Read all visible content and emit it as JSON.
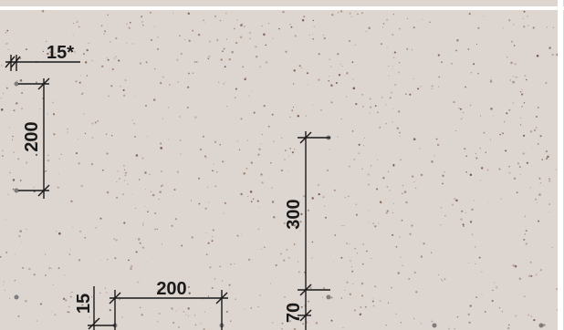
{
  "colors": {
    "panel": "#ddd5cf",
    "panel_edge": "#ffffff",
    "speckle_dark": "#6e4b3a",
    "speckle_mid": "#9a7a68",
    "line": "#1a1a1a",
    "fixing": "#7d7d7d"
  },
  "dimensions": {
    "edge_distance_top": "15*",
    "vertical_spacing_left": "200",
    "vertical_spacing_center": "300",
    "horizontal_spacing_bottom": "200",
    "edge_distance_bottom_left": "15",
    "edge_distance_bottom_center": "70"
  }
}
